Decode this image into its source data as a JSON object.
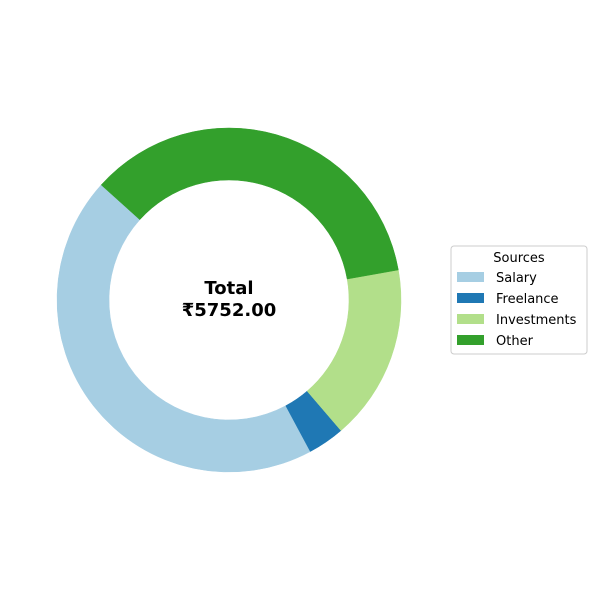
{
  "chart_data": {
    "type": "pie",
    "style": "donut",
    "center_label": {
      "line1": "Total",
      "line2": "₹5752.00"
    },
    "legend": {
      "title": "Sources",
      "placement": "right"
    },
    "series": [
      {
        "name": "Salary",
        "value": 2560,
        "color": "#a6cee3"
      },
      {
        "name": "Freelance",
        "value": 198,
        "color": "#1f78b4"
      },
      {
        "name": "Investments",
        "value": 950,
        "color": "#b2df8a"
      },
      {
        "name": "Other",
        "value": 2044,
        "color": "#33a02c"
      }
    ]
  }
}
